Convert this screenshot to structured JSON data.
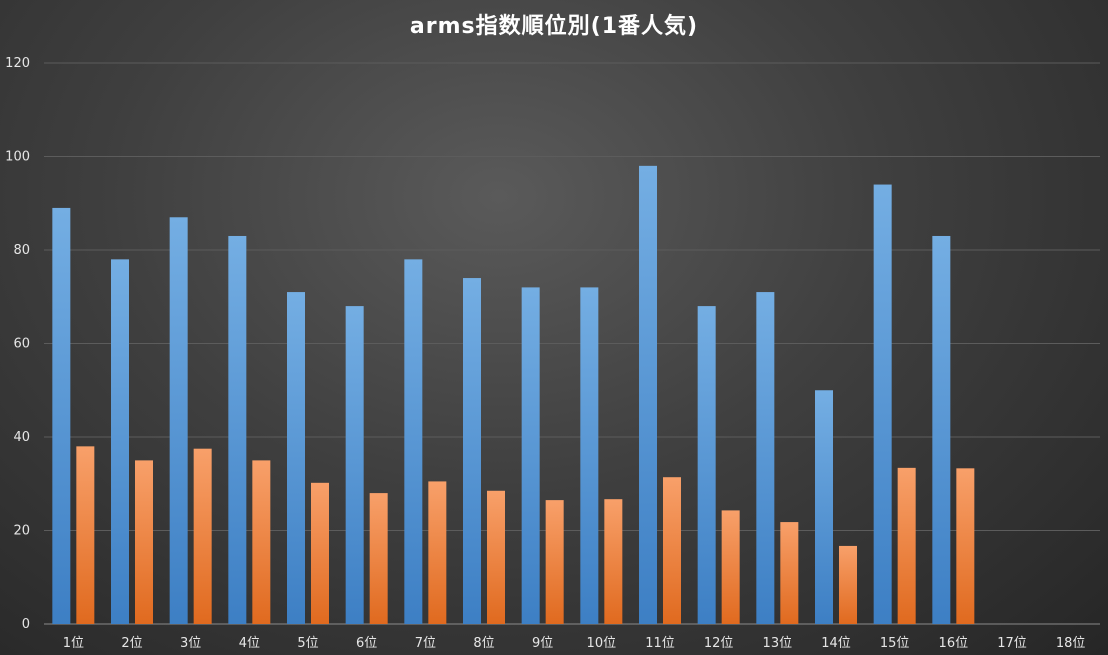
{
  "chart_data": {
    "type": "bar",
    "title": "arms指数順位別(1番人気)",
    "categories": [
      "1位",
      "2位",
      "3位",
      "4位",
      "5位",
      "6位",
      "7位",
      "8位",
      "9位",
      "10位",
      "11位",
      "12位",
      "13位",
      "14位",
      "15位",
      "16位",
      "17位",
      "18位"
    ],
    "series": [
      {
        "values": [
          89,
          78,
          87,
          83,
          71,
          68,
          78,
          74,
          72,
          72,
          98,
          68,
          71,
          50,
          94,
          83,
          null,
          null
        ],
        "color": "#5b9bd5"
      },
      {
        "values": [
          38,
          35,
          37.5,
          35,
          30.2,
          28,
          30.5,
          28.5,
          26.5,
          26.7,
          31.4,
          24.3,
          21.8,
          16.7,
          33.4,
          33.3,
          null,
          null
        ],
        "color": "#ed7d31"
      }
    ],
    "ylim": [
      0,
      120
    ],
    "yticks": [
      0,
      20,
      40,
      60,
      80,
      100,
      120
    ],
    "grid": true,
    "legend": "none"
  },
  "colors": {
    "gridline": "#5c5c5c",
    "axis": "#8a8a8a"
  }
}
